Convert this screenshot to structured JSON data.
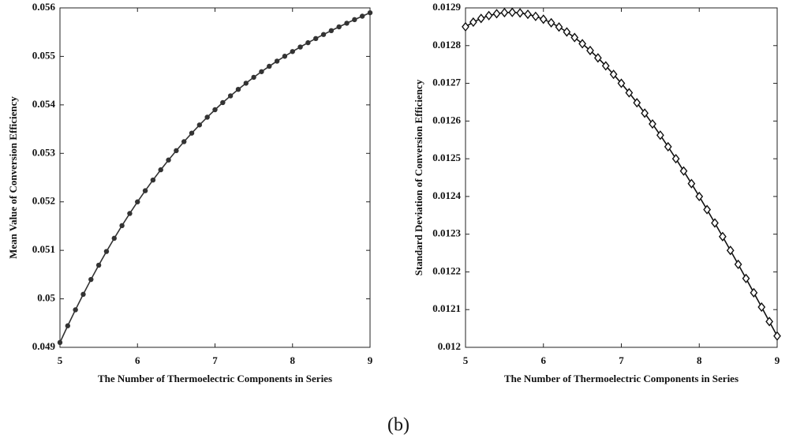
{
  "caption": "(b)",
  "chart_data": [
    {
      "type": "line",
      "marker": "circle",
      "xlabel": "The Number of Thermoelectric Components in Series",
      "ylabel": "Mean Value of Conversion Efficiency",
      "x": [
        5,
        5.1,
        5.2,
        5.3,
        5.4,
        5.5,
        5.6,
        5.7,
        5.8,
        5.9,
        6,
        6.1,
        6.2,
        6.3,
        6.4,
        6.5,
        6.6,
        6.7,
        6.8,
        6.9,
        7,
        7.1,
        7.2,
        7.3,
        7.4,
        7.5,
        7.6,
        7.7,
        7.8,
        7.9,
        8,
        8.1,
        8.2,
        8.3,
        8.4,
        8.5,
        8.6,
        8.7,
        8.8,
        8.9,
        9
      ],
      "series": [
        {
          "color": "#333333",
          "values": [
            0.0491,
            0.049444,
            0.049774,
            0.050093,
            0.050399,
            0.050694,
            0.050977,
            0.051249,
            0.05151,
            0.05176,
            0.052,
            0.05223,
            0.05245,
            0.052661,
            0.052863,
            0.053056,
            0.053241,
            0.053417,
            0.053586,
            0.053746,
            0.0539,
            0.054047,
            0.054186,
            0.05432,
            0.054447,
            0.054569,
            0.054685,
            0.054796,
            0.054902,
            0.055003,
            0.0551,
            0.055193,
            0.055282,
            0.055368,
            0.055451,
            0.055531,
            0.055609,
            0.055684,
            0.055758,
            0.055829,
            0.0559
          ]
        }
      ],
      "xlim": [
        5,
        9
      ],
      "xticks": [
        5,
        6,
        7,
        8,
        9
      ],
      "ylim": [
        0.049,
        0.056
      ],
      "yticks": [
        0.049,
        0.05,
        0.051,
        0.052,
        0.053,
        0.054,
        0.055,
        0.056
      ]
    },
    {
      "type": "line",
      "marker": "diamond",
      "xlabel": "The Number of Thermoelectric Components in Series",
      "ylabel": "Standard Deviation of Conversion Efficiency",
      "x": [
        5,
        5.1,
        5.2,
        5.3,
        5.4,
        5.5,
        5.6,
        5.7,
        5.8,
        5.9,
        6,
        6.1,
        6.2,
        6.3,
        6.4,
        6.5,
        6.6,
        6.7,
        6.8,
        6.9,
        7,
        7.1,
        7.2,
        7.3,
        7.4,
        7.5,
        7.6,
        7.7,
        7.8,
        7.9,
        8,
        8.1,
        8.2,
        8.3,
        8.4,
        8.5,
        8.6,
        8.7,
        8.8,
        8.9,
        9
      ],
      "series": [
        {
          "color": "#111111",
          "values": [
            0.01285,
            0.0128623,
            0.0128721,
            0.0128795,
            0.0128846,
            0.0128875,
            0.0128882,
            0.0128867,
            0.0128831,
            0.0128775,
            0.01287,
            0.0128606,
            0.0128493,
            0.0128362,
            0.0128214,
            0.012805,
            0.012787,
            0.0127674,
            0.0127463,
            0.0127238,
            0.0127,
            0.0126749,
            0.0126485,
            0.0126209,
            0.0125922,
            0.0125625,
            0.0125318,
            0.0125001,
            0.0124675,
            0.0124341,
            0.0124,
            0.0123652,
            0.0123297,
            0.0122936,
            0.012257,
            0.01222,
            0.0121826,
            0.0121448,
            0.0121067,
            0.0120684,
            0.01203
          ]
        }
      ],
      "xlim": [
        5,
        9
      ],
      "xticks": [
        5,
        6,
        7,
        8,
        9
      ],
      "ylim": [
        0.012,
        0.0129
      ],
      "yticks": [
        0.012,
        0.0121,
        0.0122,
        0.0123,
        0.0124,
        0.0125,
        0.0126,
        0.0127,
        0.0128,
        0.0129
      ]
    }
  ]
}
